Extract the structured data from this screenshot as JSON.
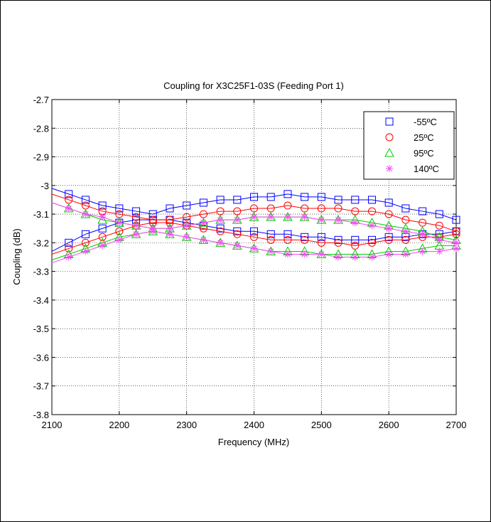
{
  "chart_data": {
    "type": "line",
    "title": "Coupling for X3C25F1-03S (Feeding Port 1)",
    "xlabel": "Frequency (MHz)",
    "ylabel": "Coupling (dB)",
    "xlim": [
      2100,
      2700
    ],
    "ylim": [
      -3.8,
      -2.7
    ],
    "xticks": [
      2100,
      2200,
      2300,
      2400,
      2500,
      2600,
      2700
    ],
    "yticks": [
      -3.8,
      -3.7,
      -3.6,
      -3.5,
      -3.4,
      -3.3,
      -3.2,
      -3.1,
      -3,
      -2.9,
      -2.8,
      -2.7
    ],
    "xtick_labels": [
      "2100",
      "2200",
      "2300",
      "2400",
      "2500",
      "2600",
      "2700"
    ],
    "ytick_labels": [
      "-3.8",
      "-3.7",
      "-3.6",
      "-3.5",
      "-3.4",
      "-3.3",
      "-3.2",
      "-3.1",
      "-3",
      "-2.9",
      "-2.8",
      "-2.7"
    ],
    "grid": true,
    "legend_position": "top-right",
    "x": [
      2125,
      2150,
      2175,
      2200,
      2225,
      2250,
      2275,
      2300,
      2325,
      2350,
      2375,
      2400,
      2425,
      2450,
      2475,
      2500,
      2525,
      2550,
      2575,
      2600,
      2625,
      2650,
      2675,
      2700
    ],
    "series": [
      {
        "name": "-55ºC",
        "color": "#0000ff",
        "marker": "square",
        "traces": [
          [
            -3.03,
            -3.05,
            -3.07,
            -3.08,
            -3.09,
            -3.1,
            -3.08,
            -3.07,
            -3.06,
            -3.05,
            -3.05,
            -3.04,
            -3.04,
            -3.03,
            -3.04,
            -3.04,
            -3.05,
            -3.05,
            -3.05,
            -3.06,
            -3.08,
            -3.09,
            -3.1,
            -3.12
          ],
          [
            -3.2,
            -3.17,
            -3.15,
            -3.13,
            -3.12,
            -3.12,
            -3.12,
            -3.13,
            -3.14,
            -3.15,
            -3.16,
            -3.16,
            -3.17,
            -3.17,
            -3.18,
            -3.18,
            -3.19,
            -3.19,
            -3.19,
            -3.18,
            -3.18,
            -3.17,
            -3.17,
            -3.16
          ]
        ]
      },
      {
        "name": "25ºC",
        "color": "#ff0000",
        "marker": "circle",
        "traces": [
          [
            -3.05,
            -3.07,
            -3.09,
            -3.1,
            -3.11,
            -3.12,
            -3.12,
            -3.11,
            -3.1,
            -3.09,
            -3.09,
            -3.08,
            -3.08,
            -3.07,
            -3.08,
            -3.08,
            -3.08,
            -3.09,
            -3.09,
            -3.1,
            -3.12,
            -3.13,
            -3.14,
            -3.16
          ],
          [
            -3.22,
            -3.2,
            -3.18,
            -3.16,
            -3.14,
            -3.13,
            -3.13,
            -3.14,
            -3.15,
            -3.16,
            -3.17,
            -3.18,
            -3.19,
            -3.19,
            -3.19,
            -3.2,
            -3.2,
            -3.21,
            -3.2,
            -3.19,
            -3.19,
            -3.18,
            -3.18,
            -3.17
          ]
        ]
      },
      {
        "name": "95ºC",
        "color": "#00cc00",
        "marker": "triangle",
        "traces": [
          [
            -3.08,
            -3.1,
            -3.12,
            -3.13,
            -3.14,
            -3.15,
            -3.15,
            -3.14,
            -3.13,
            -3.12,
            -3.12,
            -3.11,
            -3.11,
            -3.11,
            -3.11,
            -3.12,
            -3.12,
            -3.12,
            -3.13,
            -3.14,
            -3.15,
            -3.16,
            -3.18,
            -3.19
          ],
          [
            -3.24,
            -3.22,
            -3.2,
            -3.18,
            -3.17,
            -3.16,
            -3.17,
            -3.18,
            -3.19,
            -3.2,
            -3.21,
            -3.22,
            -3.23,
            -3.23,
            -3.23,
            -3.24,
            -3.24,
            -3.24,
            -3.24,
            -3.23,
            -3.23,
            -3.22,
            -3.21,
            -3.21
          ]
        ]
      },
      {
        "name": "140ºC",
        "color": "#ff44ff",
        "marker": "star",
        "traces": [
          [
            -3.08,
            -3.1,
            -3.11,
            -3.13,
            -3.14,
            -3.15,
            -3.15,
            -3.14,
            -3.13,
            -3.12,
            -3.12,
            -3.11,
            -3.11,
            -3.11,
            -3.11,
            -3.12,
            -3.12,
            -3.13,
            -3.14,
            -3.15,
            -3.16,
            -3.17,
            -3.19,
            -3.2
          ],
          [
            -3.25,
            -3.23,
            -3.21,
            -3.19,
            -3.17,
            -3.16,
            -3.17,
            -3.18,
            -3.19,
            -3.2,
            -3.21,
            -3.22,
            -3.23,
            -3.24,
            -3.24,
            -3.24,
            -3.25,
            -3.25,
            -3.25,
            -3.24,
            -3.24,
            -3.23,
            -3.23,
            -3.22
          ]
        ]
      }
    ]
  }
}
